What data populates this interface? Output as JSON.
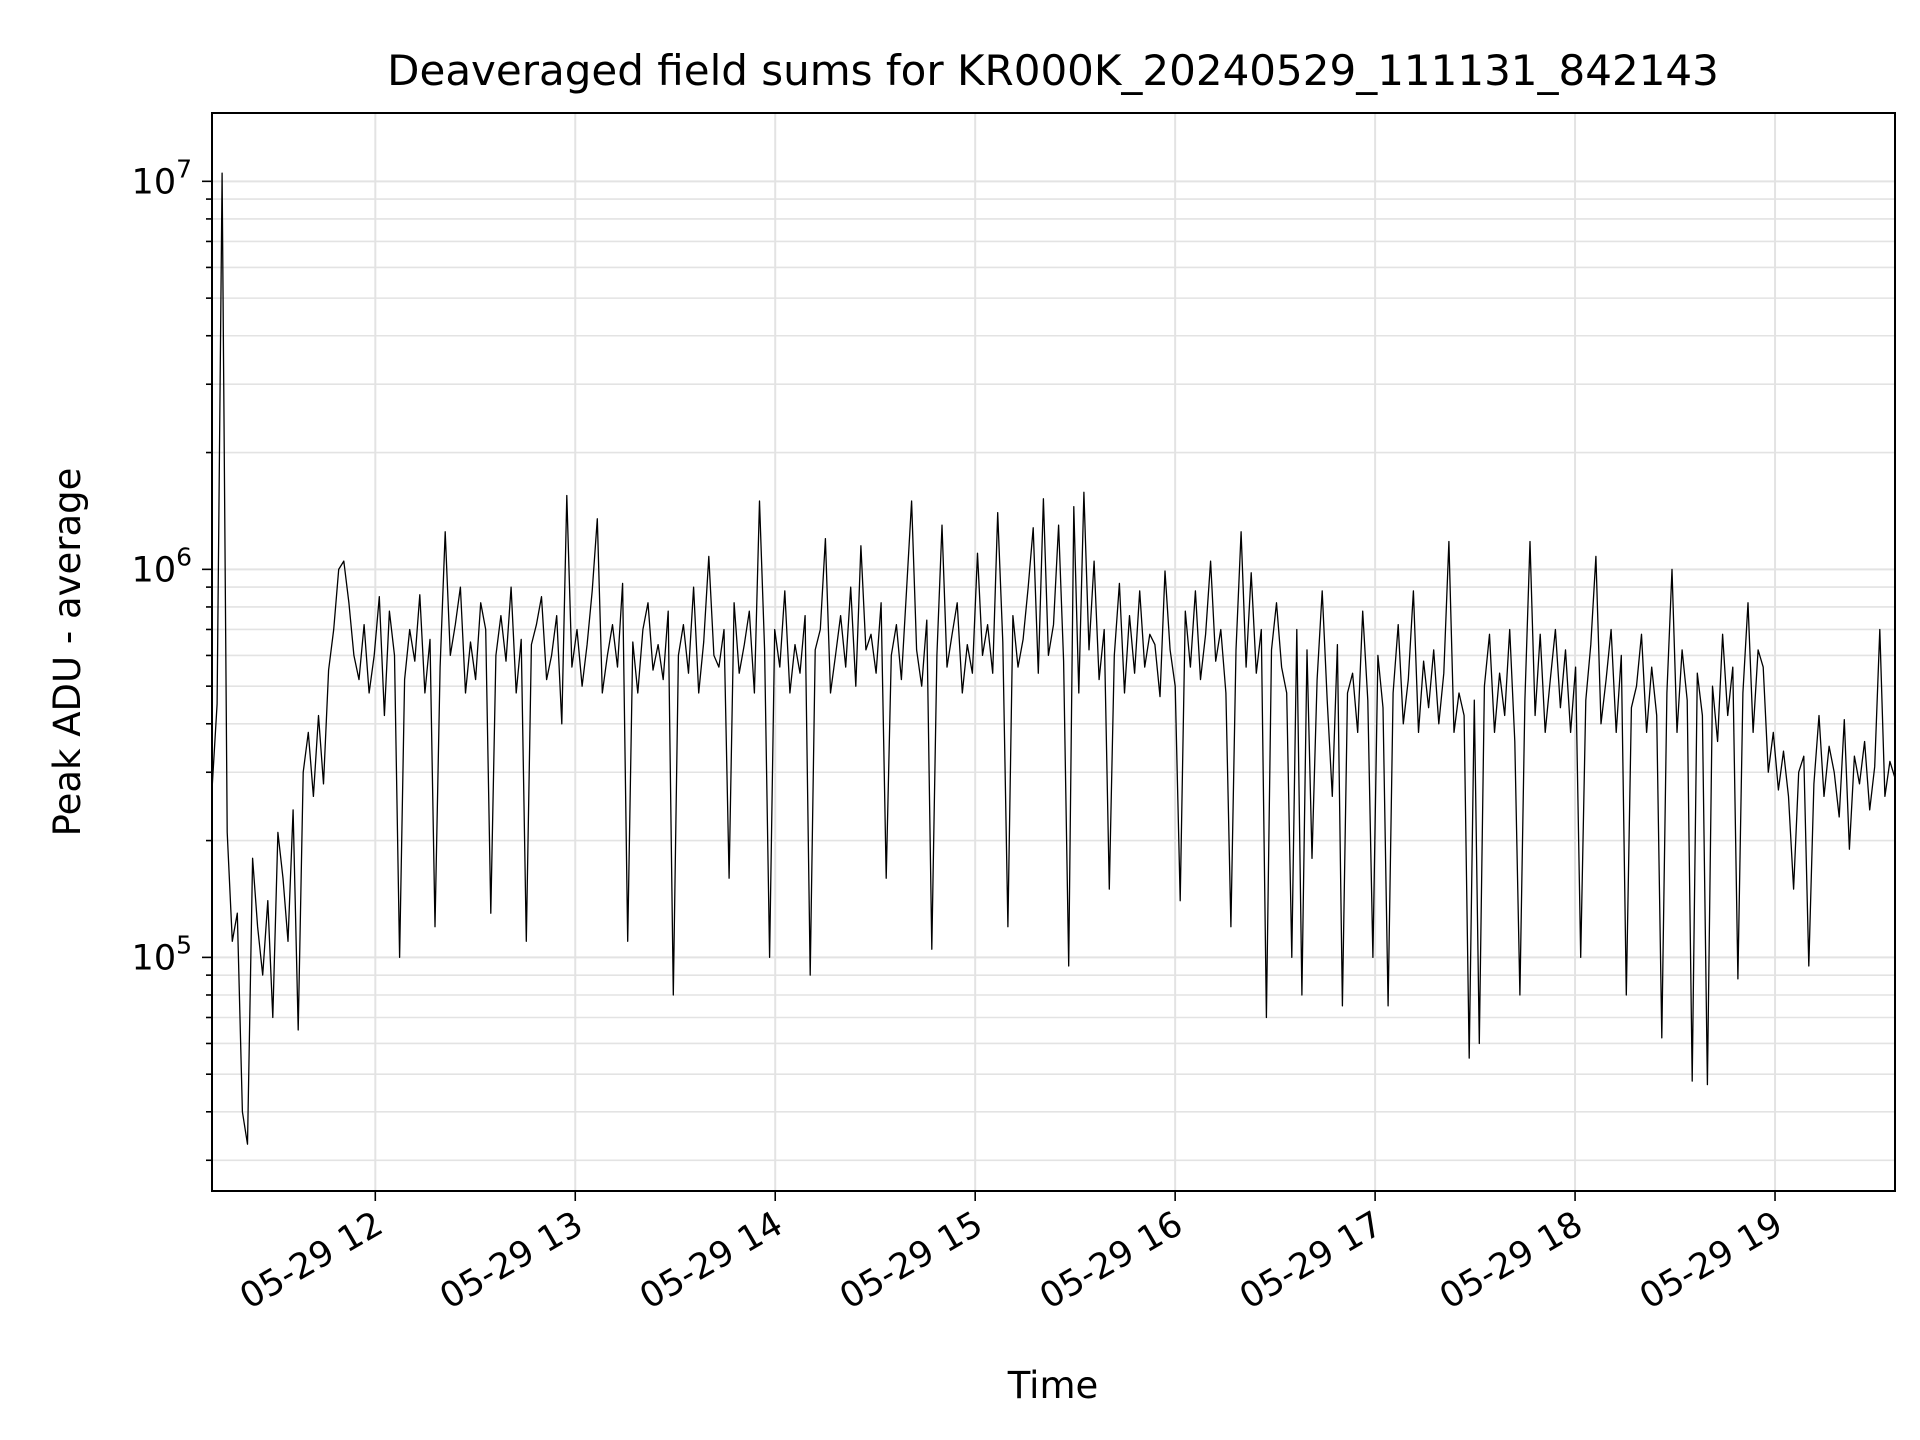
{
  "chart_data": {
    "type": "line",
    "title": "Deaveraged field sums for KR000K_20240529_111131_842143",
    "xlabel": "Time",
    "ylabel": "Peak ADU - average",
    "x_ticks": [
      "05-29 12",
      "05-29 13",
      "05-29 14",
      "05-29 15",
      "05-29 16",
      "05-29 17",
      "05-29 18",
      "05-29 19"
    ],
    "y_ticks": [
      {
        "base": "10",
        "exp": "5",
        "value": 100000
      },
      {
        "base": "10",
        "exp": "6",
        "value": 1000000
      },
      {
        "base": "10",
        "exp": "7",
        "value": 10000000
      }
    ],
    "x_range": [
      "2024-05-29 11:11",
      "2024-05-29 19:36"
    ],
    "y_range": [
      25000,
      15000000
    ],
    "y_scale": "log",
    "grid": true,
    "line_color": "#000000",
    "series": [
      {
        "x_start": "2024-05-29 11:11",
        "x_end": "2024-05-29 19:36",
        "values": [
          270000,
          450000,
          10500000,
          210000,
          110000,
          130000,
          40000,
          33000,
          180000,
          120000,
          90000,
          140000,
          70000,
          210000,
          160000,
          110000,
          240000,
          65000,
          300000,
          380000,
          260000,
          420000,
          280000,
          550000,
          700000,
          1000000,
          1050000,
          820000,
          600000,
          520000,
          720000,
          480000,
          600000,
          850000,
          420000,
          780000,
          600000,
          100000,
          520000,
          700000,
          580000,
          860000,
          480000,
          660000,
          120000,
          560000,
          1250000,
          600000,
          720000,
          900000,
          480000,
          650000,
          520000,
          820000,
          700000,
          130000,
          600000,
          760000,
          580000,
          900000,
          480000,
          660000,
          110000,
          640000,
          720000,
          850000,
          520000,
          600000,
          760000,
          400000,
          1550000,
          560000,
          700000,
          500000,
          640000,
          880000,
          1350000,
          480000,
          600000,
          720000,
          560000,
          920000,
          110000,
          650000,
          480000,
          700000,
          820000,
          550000,
          640000,
          520000,
          780000,
          80000,
          600000,
          720000,
          540000,
          900000,
          480000,
          650000,
          1080000,
          600000,
          560000,
          700000,
          160000,
          820000,
          540000,
          640000,
          780000,
          480000,
          1500000,
          620000,
          100000,
          700000,
          560000,
          880000,
          480000,
          640000,
          540000,
          760000,
          90000,
          620000,
          700000,
          1200000,
          480000,
          600000,
          760000,
          560000,
          900000,
          500000,
          1150000,
          620000,
          680000,
          540000,
          820000,
          160000,
          600000,
          720000,
          520000,
          880000,
          1500000,
          620000,
          500000,
          740000,
          105000,
          600000,
          1300000,
          560000,
          680000,
          820000,
          480000,
          640000,
          540000,
          1100000,
          600000,
          720000,
          540000,
          1400000,
          650000,
          120000,
          760000,
          560000,
          660000,
          900000,
          1280000,
          540000,
          1520000,
          600000,
          720000,
          1300000,
          580000,
          95000,
          1450000,
          480000,
          1580000,
          620000,
          1050000,
          520000,
          700000,
          150000,
          600000,
          920000,
          480000,
          760000,
          540000,
          880000,
          560000,
          680000,
          640000,
          470000,
          990000,
          620000,
          500000,
          140000,
          780000,
          560000,
          880000,
          520000,
          680000,
          1050000,
          580000,
          700000,
          480000,
          120000,
          620000,
          1250000,
          560000,
          980000,
          540000,
          700000,
          70000,
          620000,
          820000,
          560000,
          480000,
          100000,
          700000,
          80000,
          620000,
          180000,
          520000,
          880000,
          460000,
          260000,
          640000,
          75000,
          480000,
          540000,
          380000,
          780000,
          460000,
          100000,
          600000,
          440000,
          75000,
          480000,
          720000,
          400000,
          520000,
          880000,
          380000,
          580000,
          440000,
          620000,
          400000,
          540000,
          1180000,
          380000,
          480000,
          420000,
          55000,
          460000,
          60000,
          500000,
          680000,
          380000,
          540000,
          420000,
          700000,
          360000,
          80000,
          460000,
          1180000,
          420000,
          680000,
          380000,
          520000,
          700000,
          440000,
          620000,
          380000,
          560000,
          100000,
          460000,
          640000,
          1080000,
          400000,
          520000,
          700000,
          380000,
          600000,
          80000,
          440000,
          500000,
          680000,
          380000,
          560000,
          420000,
          62000,
          480000,
          1000000,
          380000,
          620000,
          460000,
          48000,
          540000,
          420000,
          47000,
          500000,
          360000,
          680000,
          420000,
          560000,
          88000,
          480000,
          820000,
          380000,
          620000,
          560000,
          300000,
          380000,
          270000,
          340000,
          260000,
          150000,
          300000,
          330000,
          95000,
          280000,
          420000,
          260000,
          350000,
          300000,
          230000,
          410000,
          190000,
          330000,
          280000,
          360000,
          240000,
          310000,
          700000,
          260000,
          320000,
          290000
        ]
      }
    ]
  }
}
